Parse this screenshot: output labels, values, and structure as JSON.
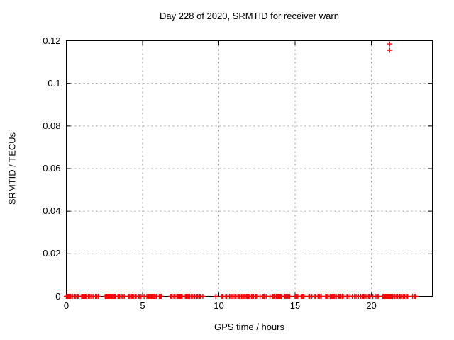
{
  "title": "Day 228 of 2020, SRMTID for receiver warn",
  "chart_data": {
    "type": "scatter",
    "title": "Day 228 of 2020, SRMTID for receiver warn",
    "xlabel": "GPS time / hours",
    "ylabel": "SRMTID / TECUs",
    "xlim": [
      0,
      24
    ],
    "ylim": [
      0,
      0.12
    ],
    "xticks": [
      0,
      5,
      10,
      15,
      20
    ],
    "xtick_labels": [
      "0",
      "5",
      "10",
      "15",
      "20"
    ],
    "yticks": [
      0,
      0.02,
      0.04,
      0.06,
      0.08,
      0.1,
      0.12
    ],
    "ytick_labels": [
      "0",
      "0.02",
      "0.04",
      "0.06",
      "0.08",
      "0.1",
      "0.12"
    ],
    "grid": true,
    "legend": "none",
    "marker": "plus",
    "marker_color": "#ff0000",
    "frame_color": "#000000",
    "grid_color": "#9a9a9a",
    "series": [
      {
        "name": "SRMTID",
        "baseline_y": 0,
        "baseline_x_hours": [
          0.0,
          0.05,
          0.1,
          0.15,
          0.2,
          0.25,
          0.3,
          0.4,
          0.55,
          0.62,
          0.75,
          0.82,
          1.0,
          1.05,
          1.1,
          1.15,
          1.2,
          1.25,
          1.32,
          1.45,
          1.55,
          1.65,
          1.75,
          1.92,
          2.0,
          2.1,
          2.55,
          2.6,
          2.65,
          2.7,
          2.75,
          2.8,
          2.85,
          2.92,
          2.98,
          3.04,
          3.1,
          3.16,
          3.22,
          3.38,
          3.44,
          3.5,
          3.65,
          3.72,
          3.8,
          4.08,
          4.15,
          4.25,
          4.32,
          4.4,
          4.52,
          4.58,
          4.75,
          4.82,
          4.9,
          5.1,
          5.28,
          5.34,
          5.4,
          5.46,
          5.52,
          5.58,
          5.64,
          5.7,
          5.76,
          5.82,
          5.9,
          6.1,
          6.16,
          6.22,
          6.85,
          6.92,
          7.05,
          7.12,
          7.25,
          7.3,
          7.35,
          7.4,
          7.45,
          7.5,
          7.55,
          7.6,
          7.8,
          7.86,
          7.92,
          7.98,
          8.04,
          8.1,
          8.2,
          8.26,
          8.36,
          8.42,
          8.56,
          8.62,
          8.74,
          8.8,
          8.95,
          9.8,
          10.2,
          10.26,
          10.45,
          10.52,
          10.7,
          10.78,
          10.86,
          10.94,
          11.05,
          11.12,
          11.25,
          11.32,
          11.38,
          11.5,
          11.58,
          11.65,
          11.72,
          11.8,
          11.86,
          11.95,
          12.02,
          12.15,
          12.22,
          12.28,
          12.42,
          12.48,
          12.7,
          12.86,
          12.92,
          12.98,
          13.1,
          13.35,
          13.5,
          13.56,
          13.62,
          13.75,
          13.8,
          13.85,
          13.9,
          13.95,
          14.0,
          14.05,
          14.1,
          14.3,
          14.36,
          14.42,
          14.52,
          14.58,
          14.64,
          15.0,
          15.06,
          15.12,
          15.18,
          15.4,
          15.46,
          15.52,
          15.58,
          15.9,
          15.96,
          16.1,
          16.3,
          16.36,
          16.5,
          16.56,
          16.62,
          16.72,
          17.0,
          17.08,
          17.15,
          17.3,
          17.36,
          17.42,
          17.48,
          17.54,
          17.6,
          17.7,
          17.85,
          17.92,
          18.0,
          18.1,
          18.16,
          18.4,
          18.46,
          18.6,
          18.75,
          18.9,
          19.0,
          19.15,
          19.3,
          19.42,
          19.48,
          19.55,
          19.65,
          19.8,
          19.86,
          19.92,
          20.1,
          20.3,
          20.38,
          20.45,
          20.75,
          20.79,
          20.83,
          20.87,
          20.91,
          20.95,
          20.99,
          21.03,
          21.07,
          21.11,
          21.15,
          21.19,
          21.23,
          21.27,
          21.31,
          21.4,
          21.48,
          21.55,
          21.65,
          21.72,
          21.85,
          21.92,
          22.0,
          22.1,
          22.18,
          22.3,
          22.38,
          22.7,
          22.85,
          22.9
        ],
        "outlier_points": [
          {
            "x": 21.2,
            "y": 0.1185
          },
          {
            "x": 21.2,
            "y": 0.1155
          }
        ]
      }
    ]
  }
}
